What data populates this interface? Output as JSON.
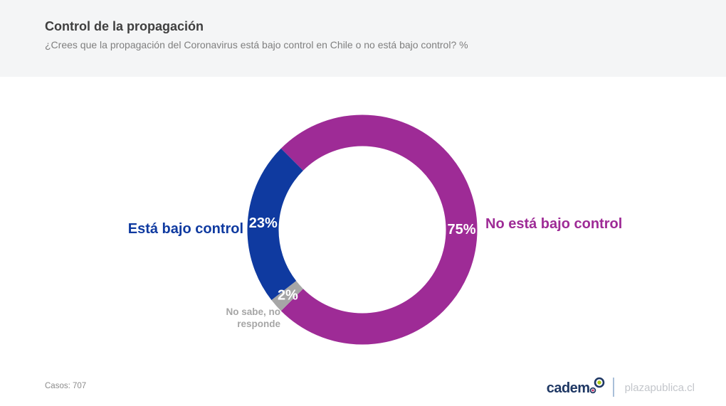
{
  "header": {
    "title": "Control de la propagación",
    "subtitle": "¿Crees que la propagación del Coronavirus está bajo control en Chile o no está bajo control? %"
  },
  "chart_data": {
    "type": "pie",
    "title": "Control de la propagación",
    "unit": "%",
    "donut": true,
    "start_angle_deg": -45,
    "order": "clockwise-from-start-angle",
    "legend_position": "labels-around-chart",
    "segments": [
      {
        "label": "No está bajo control",
        "value": 75,
        "pct_label": "75%",
        "color": "#9E2B96"
      },
      {
        "label": "No sabe, no responde",
        "value": 2,
        "pct_label": "2%",
        "color": "#A6A6A6"
      },
      {
        "label": "Está bajo control",
        "value": 23,
        "pct_label": "23%",
        "color": "#0F3AA0"
      }
    ]
  },
  "footer": {
    "cases": "Casos: 707",
    "brand": "cadem",
    "site": "plazapublica.cl"
  },
  "icons": {
    "cadem_logo_icon": "concentric-target-circles"
  },
  "colors": {
    "accent_blue": "#0F3AA0",
    "accent_purple": "#9E2B96",
    "neutral_gray": "#A6A6A6",
    "brand_navy": "#1F3864",
    "header_band": "#F4F5F6",
    "brand_green_dot": "#ABC716",
    "brand_red_dot": "#C8235C"
  }
}
